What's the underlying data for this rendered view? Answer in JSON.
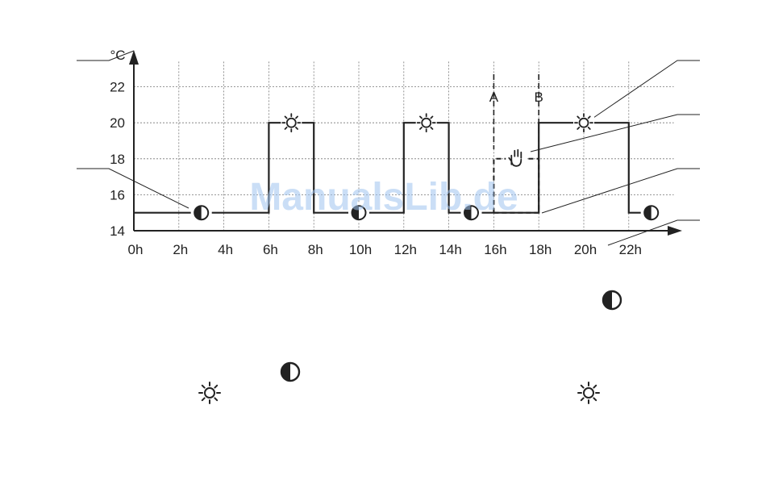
{
  "chart_data": {
    "type": "line",
    "y_unit": "°C",
    "y_ticks": [
      "14",
      "16",
      "18",
      "20",
      "22"
    ],
    "x_ticks": [
      "0h",
      "2h",
      "4h",
      "6h",
      "8h",
      "10h",
      "12h",
      "14h",
      "16h",
      "18h",
      "20h",
      "22h"
    ],
    "xlim": [
      0,
      24
    ],
    "ylim": [
      14,
      23.5
    ],
    "grid": true,
    "profile": [
      {
        "x": 0,
        "y": 15
      },
      {
        "x": 6,
        "y": 15
      },
      {
        "x": 6,
        "y": 20
      },
      {
        "x": 8,
        "y": 20
      },
      {
        "x": 8,
        "y": 15
      },
      {
        "x": 12,
        "y": 15
      },
      {
        "x": 12,
        "y": 20
      },
      {
        "x": 14,
        "y": 20
      },
      {
        "x": 14,
        "y": 15
      },
      {
        "x": 18,
        "y": 15
      },
      {
        "x": 18,
        "y": 20
      },
      {
        "x": 22,
        "y": 20
      },
      {
        "x": 22,
        "y": 15
      },
      {
        "x": 23,
        "y": 15
      }
    ],
    "override_segment": [
      {
        "x": 16,
        "y": 15
      },
      {
        "x": 16,
        "y": 18
      },
      {
        "x": 18,
        "y": 18
      },
      {
        "x": 18,
        "y": 15
      }
    ],
    "markers": [
      {
        "label": "A",
        "x": 16
      },
      {
        "label": "B",
        "x": 18
      }
    ],
    "mode_icons": [
      {
        "icon": "moon-icon",
        "x": 3,
        "y": 15
      },
      {
        "icon": "sun-icon",
        "x": 7,
        "y": 20
      },
      {
        "icon": "moon-icon",
        "x": 10,
        "y": 15
      },
      {
        "icon": "sun-icon",
        "x": 13,
        "y": 20
      },
      {
        "icon": "moon-icon",
        "x": 15,
        "y": 15
      },
      {
        "icon": "hand-icon",
        "x": 17,
        "y": 18
      },
      {
        "icon": "sun-icon",
        "x": 20,
        "y": 20
      },
      {
        "icon": "moon-icon",
        "x": 23,
        "y": 15
      }
    ]
  },
  "watermark": "ManualsLib.de",
  "colors": {
    "line": "#222222",
    "grid": "#777777",
    "watermark": "#9fc2ee"
  },
  "loose_icons": [
    "moon-icon",
    "moon-icon",
    "sun-icon",
    "sun-icon"
  ]
}
